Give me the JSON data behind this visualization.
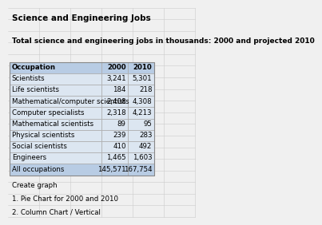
{
  "title": "Science and Engineering Jobs",
  "subtitle": "Total science and engineering jobs in thousands: 2000 and projected 2010",
  "col_headers": [
    "Occupation",
    "2000",
    "2010"
  ],
  "rows": [
    [
      "Scientists",
      "3,241",
      "5,301"
    ],
    [
      "Life scientists",
      "184",
      "218"
    ],
    [
      "Mathematical/computer scientists",
      "2,408",
      "4,308"
    ],
    [
      "Computer specialists",
      "2,318",
      "4,213"
    ],
    [
      "Mathematical scientists",
      "89",
      "95"
    ],
    [
      "Physical scientists",
      "239",
      "283"
    ],
    [
      "Social scientists",
      "410",
      "492"
    ],
    [
      "Engineers",
      "1,465",
      "1,603"
    ],
    [
      "All occupations",
      "145,571",
      "167,754"
    ]
  ],
  "footer_lines": [
    "Create graph",
    "1. Pie Chart for 2000 and 2010",
    "2. Column Chart / Vertical"
  ],
  "header_bg": "#b8cce4",
  "row_bg": "#dce6f1",
  "all_occ_bg": "#b8cce4",
  "grid_color": "#cccccc",
  "outer_bg": "#f0f0f0",
  "cell_border_color": "#aaaaaa",
  "title_fontsize": 7.5,
  "subtitle_fontsize": 6.5,
  "table_fontsize": 6.2,
  "footer_fontsize": 6.2
}
